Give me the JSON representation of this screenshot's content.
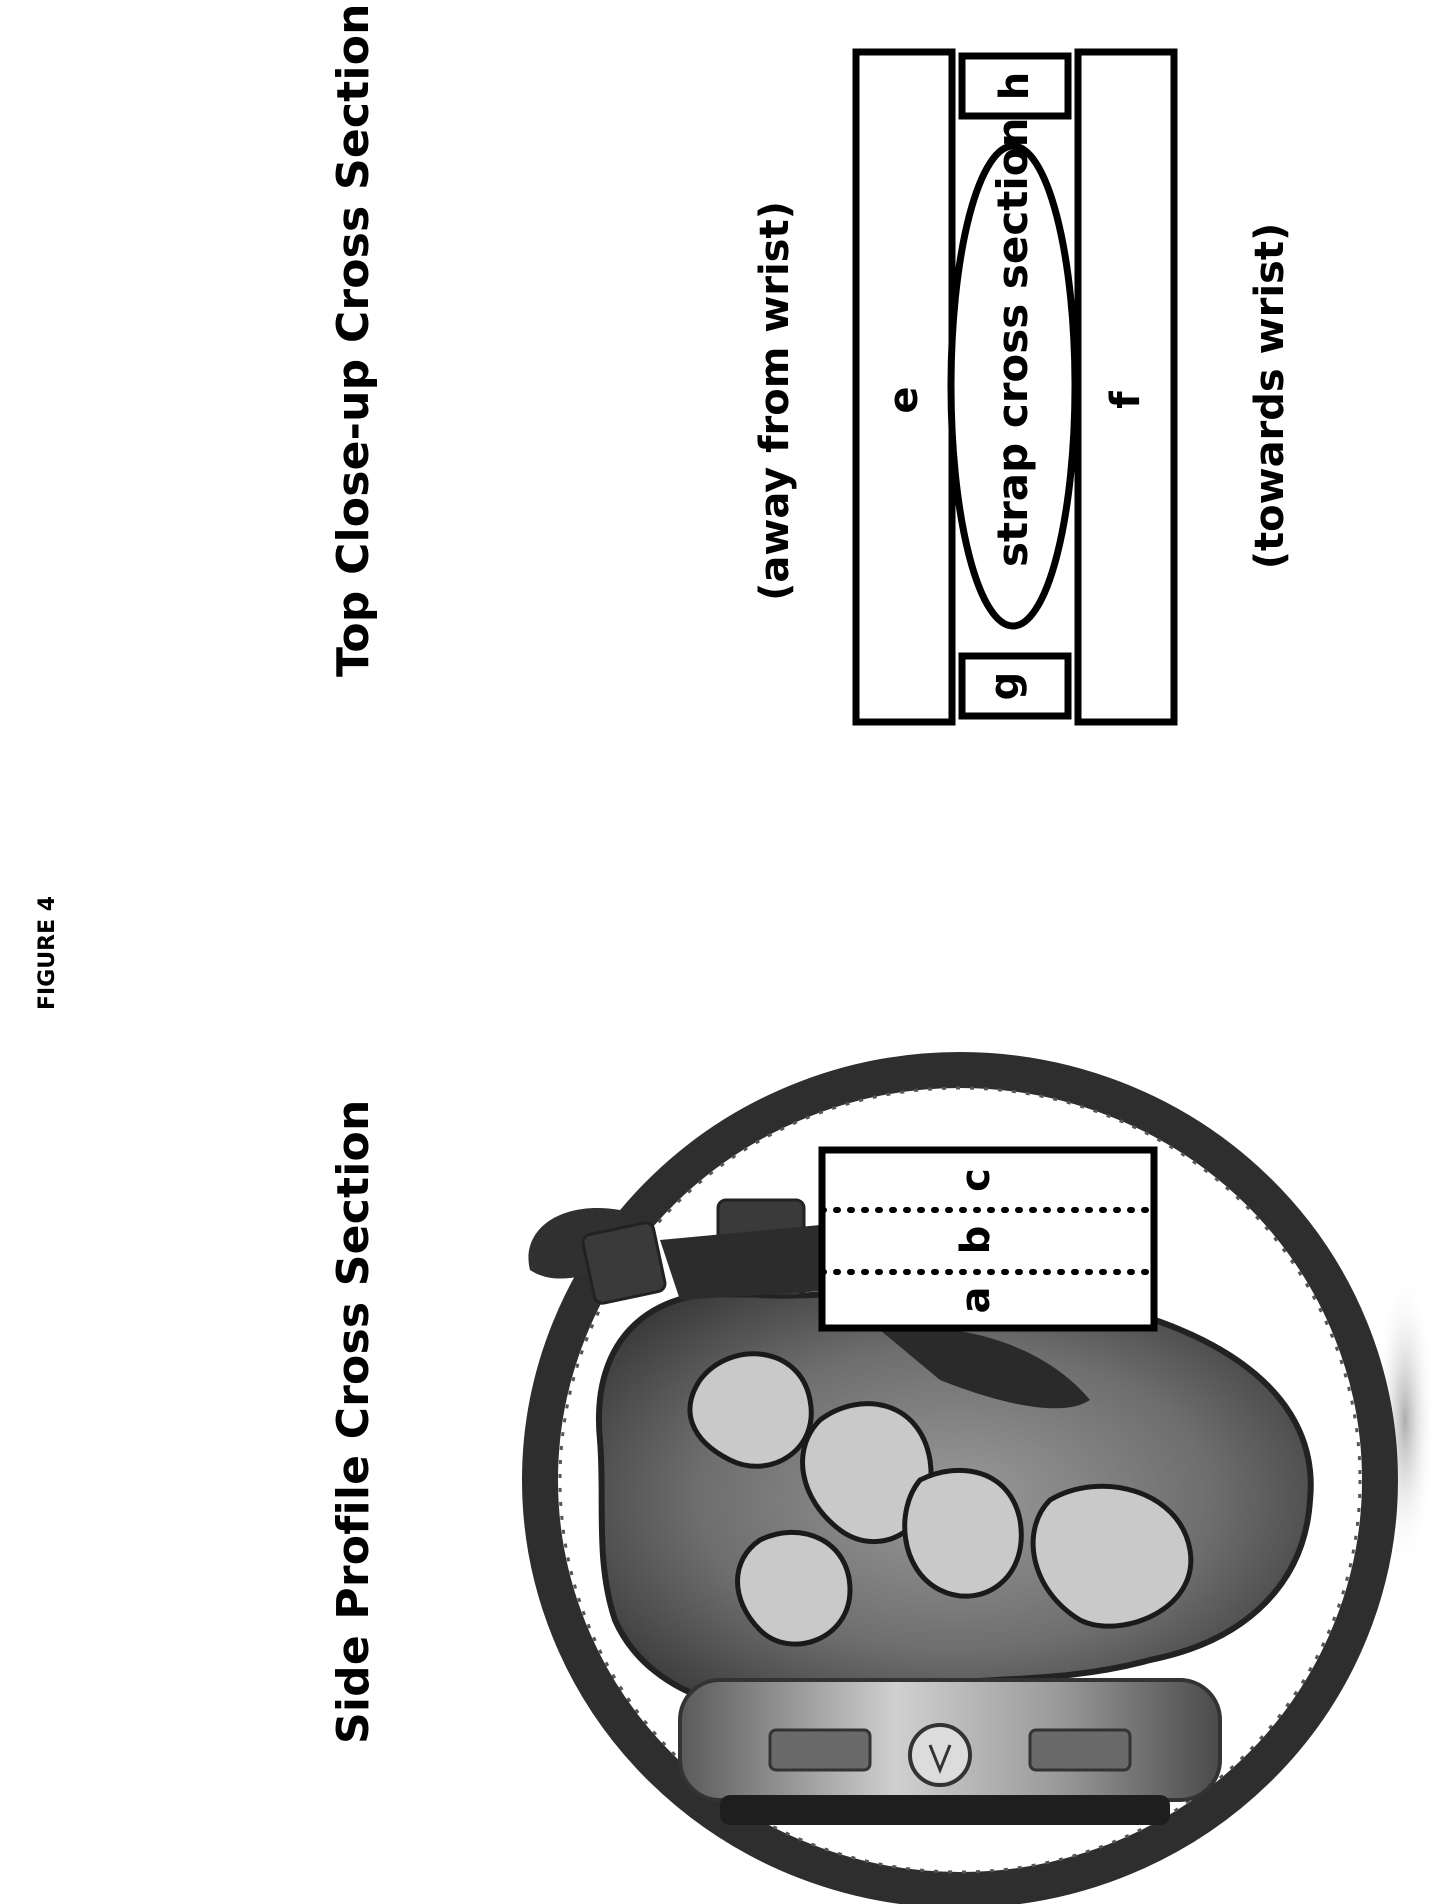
{
  "figure_label": "FIGURE 4",
  "side_profile": {
    "heading": "Side Profile Cross Section",
    "zone_labels": [
      "a",
      "b",
      "c"
    ]
  },
  "top_closeup": {
    "heading": "Top Close-up Cross Section",
    "direction_away": "(away from wrist)",
    "direction_towards": "(towards wrist)",
    "block_labels": {
      "e": "e",
      "f": "f",
      "g": "g",
      "h": "h"
    },
    "strap_label": "strap cross section"
  }
}
